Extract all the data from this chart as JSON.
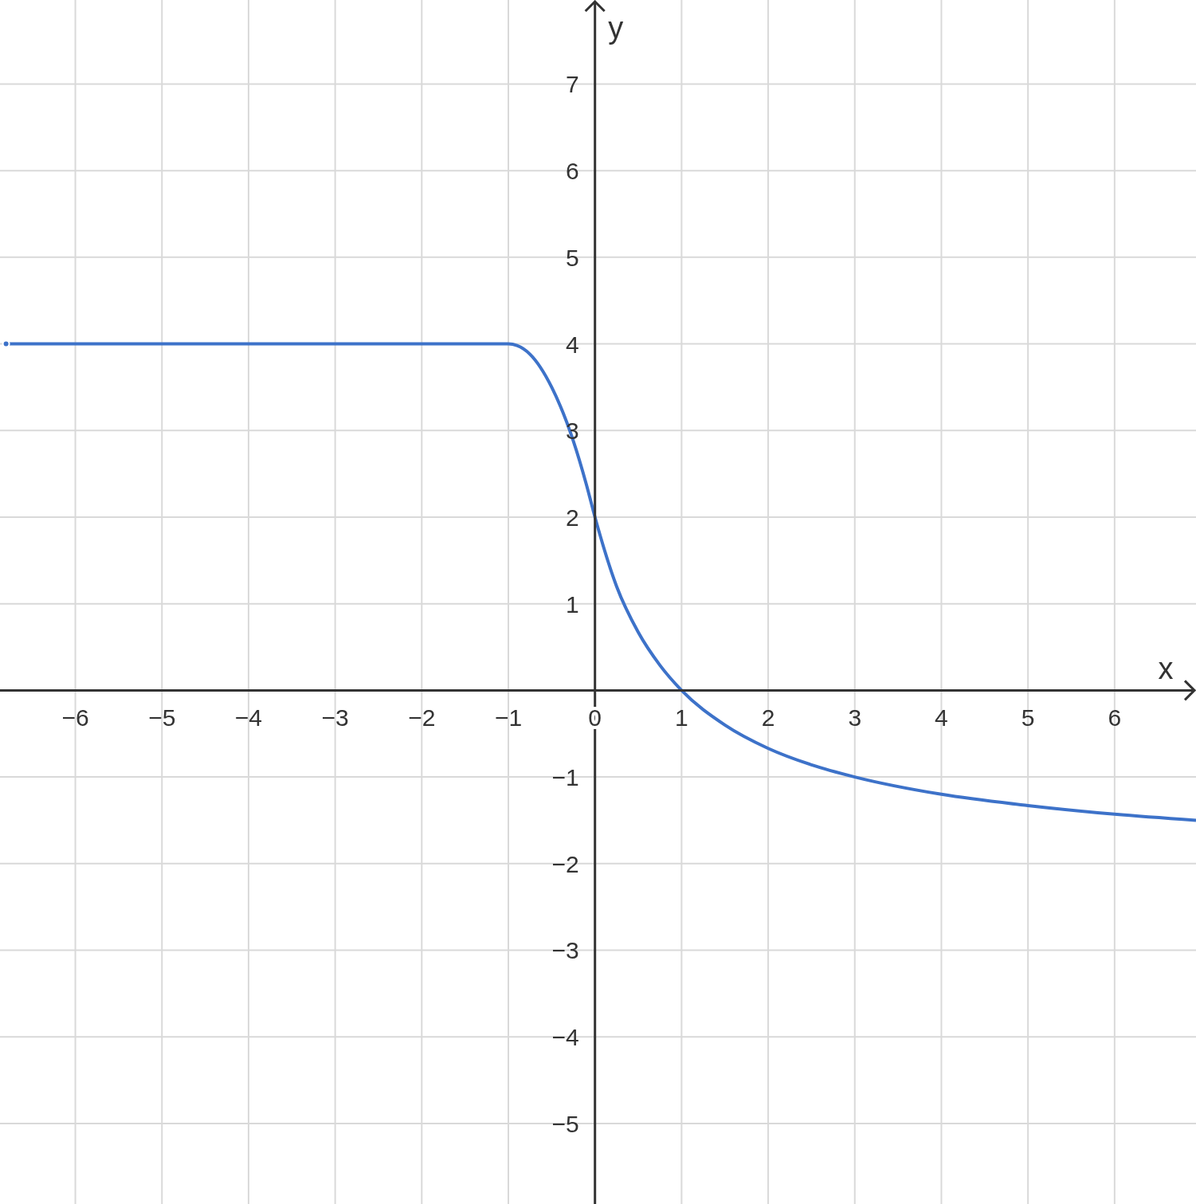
{
  "chart_data": {
    "type": "line",
    "xlabel": "x",
    "ylabel": "y",
    "x": [
      -6.8,
      -1,
      -0.9,
      -0.75,
      -0.5,
      -0.25,
      -0.1,
      0,
      0.25,
      0.5,
      0.75,
      1,
      1.5,
      2,
      2.5,
      3,
      4,
      5,
      6,
      6.94
    ],
    "series": [
      {
        "color": "#3d72c9",
        "values": [
          4,
          4,
          3.98,
          3.88,
          3.5,
          2.88,
          2.38,
          2,
          1.2,
          0.67,
          0.29,
          0,
          -0.4,
          -0.67,
          -0.86,
          -1,
          -1.2,
          -1.33,
          -1.43,
          -1.5
        ]
      }
    ],
    "xlim": [
      -6.87,
      6.94
    ],
    "ylim": [
      -5.93,
      7.97
    ],
    "xticks": [
      {
        "value": -6,
        "label": "−6"
      },
      {
        "value": -5,
        "label": "−5"
      },
      {
        "value": -4,
        "label": "−4"
      },
      {
        "value": -3,
        "label": "−3"
      },
      {
        "value": -2,
        "label": "−2"
      },
      {
        "value": -1,
        "label": "−1"
      },
      0,
      1,
      2,
      3,
      4,
      5,
      6
    ],
    "yticks": [
      {
        "value": -5,
        "label": "−5"
      },
      {
        "value": -4,
        "label": "−4"
      },
      {
        "value": -3,
        "label": "−3"
      },
      {
        "value": -2,
        "label": "−2"
      },
      {
        "value": -1,
        "label": "−1"
      },
      {
        "value": 0,
        "label": null
      },
      1,
      2,
      3,
      4,
      5,
      6,
      7
    ],
    "grid": true,
    "marker": "none",
    "line_style": "solid"
  }
}
